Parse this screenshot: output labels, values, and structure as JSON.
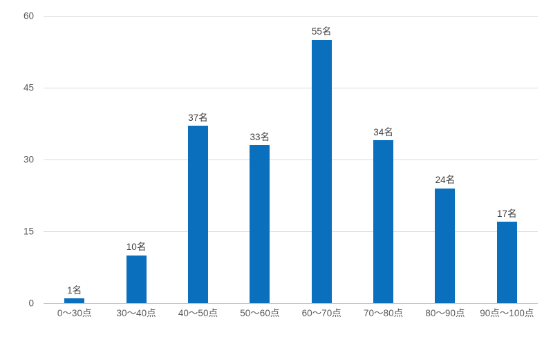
{
  "chart_data": {
    "type": "bar",
    "title": "",
    "xlabel": "",
    "ylabel": "",
    "categories": [
      "0〜30点",
      "30〜40点",
      "40〜50点",
      "50〜60点",
      "60〜70点",
      "70〜80点",
      "80〜90点",
      "90点〜100点"
    ],
    "values": [
      1,
      10,
      37,
      33,
      55,
      34,
      24,
      17
    ],
    "data_labels": [
      "1名",
      "10名",
      "37名",
      "33名",
      "55名",
      "34名",
      "24名",
      "17名"
    ],
    "yticks": [
      0,
      15,
      30,
      45,
      60
    ],
    "ylim": [
      0,
      60
    ],
    "grid": true,
    "legend_position": "none",
    "colors": {
      "bar": "#0a70be",
      "gridline": "#d9d9d9",
      "axis_line": "#c6c6c6",
      "tick_text": "#595959",
      "label_text": "#404040",
      "background": "#ffffff"
    }
  }
}
